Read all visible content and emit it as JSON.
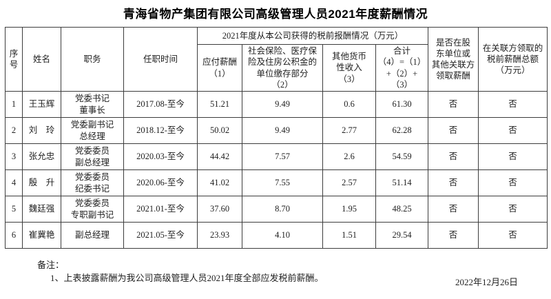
{
  "title": "青海省物产集团有限公司高级管理人员2021年度薪酬情况",
  "table": {
    "header": {
      "seq": "序\n号",
      "name": "姓名",
      "position": "职务",
      "tenure": "任职时间",
      "group": "2021年度从本公司获得的税前报酬情况（万元）",
      "payable": "应付薪酬\n（1）",
      "social": "社会保险、医疗保\n险及住房公积金的\n单位缴存部分\n（2）",
      "other": "其他货币\n性收入\n（3）",
      "total": "合计\n（4）=（1）\n+（2）+\n（3）",
      "shareholder": "是否在股\n东单位或\n其他关联方\n领取薪酬",
      "related": "在关联方领取的\n税前薪酬总额\n（万元）"
    },
    "rows": [
      {
        "seq": "1",
        "name": "王玉辉",
        "position": "党委书记\n董事长",
        "tenure": "2017.08-至今",
        "payable": "51.21",
        "social": "9.49",
        "other": "0.6",
        "total": "61.30",
        "shareholder": "否",
        "related": "否"
      },
      {
        "seq": "2",
        "name": "刘　玲",
        "position": "党委副书记\n总经理",
        "tenure": "2018.12-至今",
        "payable": "50.02",
        "social": "9.49",
        "other": "2.77",
        "total": "62.28",
        "shareholder": "否",
        "related": "否"
      },
      {
        "seq": "3",
        "name": "张允忠",
        "position": "党委委员\n副总经理",
        "tenure": "2020.03-至今",
        "payable": "44.42",
        "social": "7.57",
        "other": "2.6",
        "total": "54.59",
        "shareholder": "否",
        "related": "否"
      },
      {
        "seq": "4",
        "name": "殷　升",
        "position": "党委委员\n纪委书记",
        "tenure": "2020.06-至今",
        "payable": "41.02",
        "social": "7.55",
        "other": "2.57",
        "total": "51.14",
        "shareholder": "否",
        "related": "否"
      },
      {
        "seq": "5",
        "name": "魏廷强",
        "position": "党委委员\n专职副书记",
        "tenure": "2021.01-至今",
        "payable": "37.60",
        "social": "8.70",
        "other": "1.95",
        "total": "48.25",
        "shareholder": "否",
        "related": "否"
      },
      {
        "seq": "6",
        "name": "崔冀艳",
        "position": "副总经理",
        "tenure": "2021.05-至今",
        "payable": "23.93",
        "social": "4.10",
        "other": "1.51",
        "total": "29.54",
        "shareholder": "否",
        "related": "否"
      }
    ]
  },
  "notes": {
    "label": "备注：",
    "item1": "1、上表披露薪酬为我公司高级管理人员2021年度全部应发税前薪酬。"
  },
  "date": "2022年12月26日"
}
